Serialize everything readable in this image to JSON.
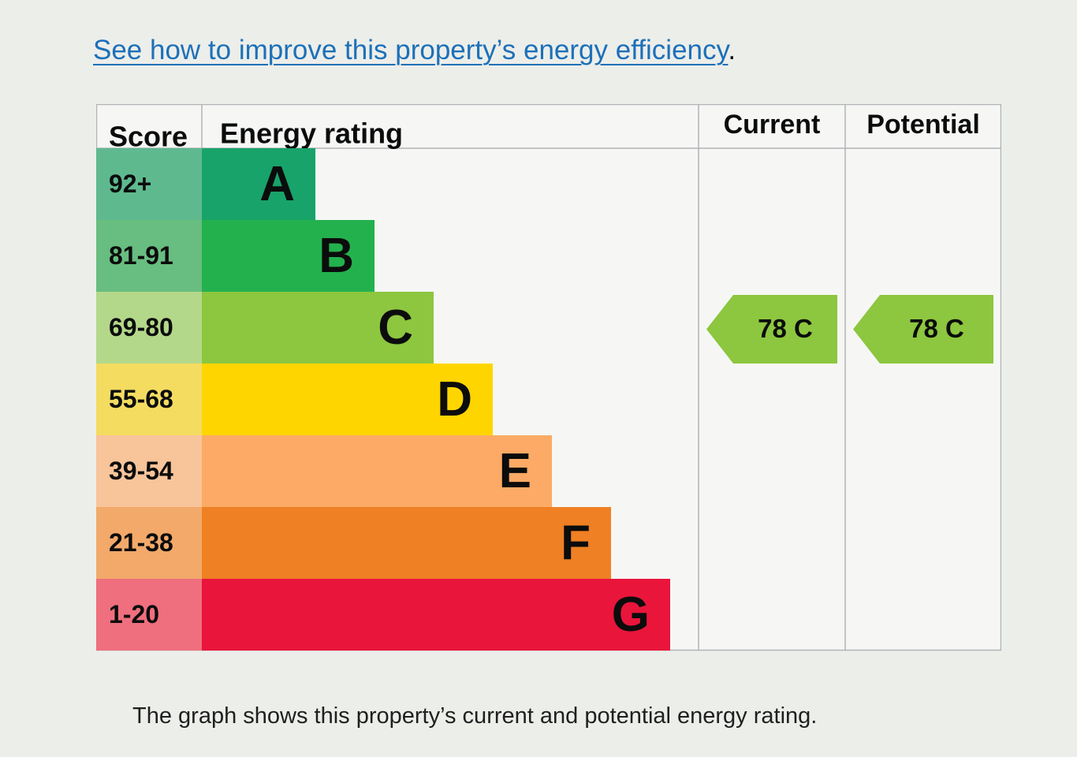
{
  "header": {
    "improve_link": "See how to improve this property’s energy efficiency",
    "improve_suffix": "."
  },
  "chart_data": {
    "type": "bar",
    "columns": {
      "score": "Score",
      "rating": "Energy rating",
      "current": "Current",
      "potential": "Potential"
    },
    "bands": [
      {
        "letter": "A",
        "range": "92+",
        "min": 92,
        "max": 100,
        "color": "#18a36a",
        "score_bg": "#5fb98f"
      },
      {
        "letter": "B",
        "range": "81-91",
        "min": 81,
        "max": 91,
        "color": "#23b14d",
        "score_bg": "#68bd80"
      },
      {
        "letter": "C",
        "range": "69-80",
        "min": 69,
        "max": 80,
        "color": "#8dc63f",
        "score_bg": "#b4d88a"
      },
      {
        "letter": "D",
        "range": "55-68",
        "min": 55,
        "max": 68,
        "color": "#ffd500",
        "score_bg": "#f3dc60"
      },
      {
        "letter": "E",
        "range": "39-54",
        "min": 39,
        "max": 54,
        "color": "#fcaa65",
        "score_bg": "#f8c49a"
      },
      {
        "letter": "F",
        "range": "21-38",
        "min": 21,
        "max": 38,
        "color": "#ef8023",
        "score_bg": "#f2a96a"
      },
      {
        "letter": "G",
        "range": "1-20",
        "min": 1,
        "max": 20,
        "color": "#e9153b",
        "score_bg": "#ef6f7e"
      }
    ],
    "current": {
      "score": 78,
      "band": "C",
      "label": "78  C",
      "color": "#8dc63f"
    },
    "potential": {
      "score": 78,
      "band": "C",
      "label": "78  C",
      "color": "#8dc63f"
    }
  },
  "footer": {
    "caption": "The graph shows this property’s current and potential energy rating."
  }
}
